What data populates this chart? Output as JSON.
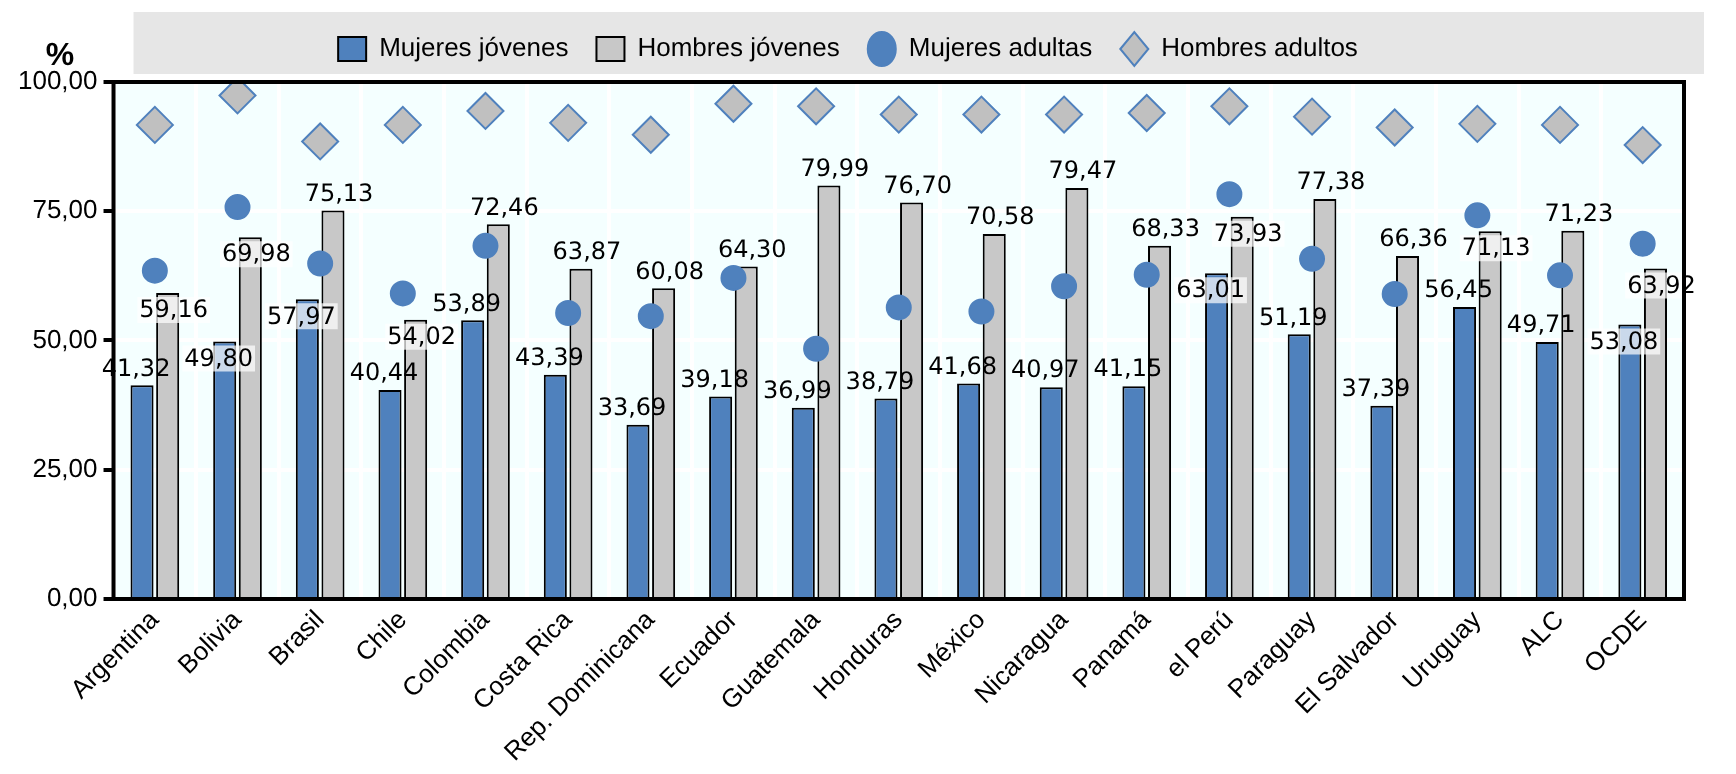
{
  "chart_data": {
    "type": "bar",
    "ylabel": "%",
    "categories": [
      "Argentina",
      "Bolivia",
      "Brasil",
      "Chile",
      "Colombia",
      "Costa Rica",
      "Rep. Dominicana",
      "Ecuador",
      "Guatemala",
      "Honduras",
      "México",
      "Nicaragua",
      "Panamá",
      "el Perú",
      "Paraguay",
      "El Salvador",
      "Uruguay",
      "ALC",
      "OCDE"
    ],
    "series": [
      {
        "name": "Mujeres jóvenes",
        "color": "#4f81bd",
        "values": [
          41.32,
          49.8,
          57.97,
          40.44,
          53.89,
          43.39,
          33.69,
          39.18,
          36.99,
          38.79,
          41.68,
          40.97,
          41.15,
          63.01,
          51.19,
          37.39,
          56.45,
          49.71,
          53.08
        ],
        "value_labels": [
          "41,32",
          "49,80",
          "57,97",
          "40,44",
          "53,89",
          "43,39",
          "33,69",
          "39,18",
          "36,99",
          "38,79",
          "41,68",
          "40,97",
          "41,15",
          "63,01",
          "51,19",
          "37,39",
          "56,45",
          "49,71",
          "53,08"
        ]
      },
      {
        "name": "Hombres jóvenes",
        "color": "#c8c8c8",
        "values": [
          59.16,
          69.98,
          75.13,
          54.02,
          72.46,
          63.87,
          60.08,
          64.3,
          79.99,
          76.7,
          70.58,
          79.47,
          68.33,
          73.93,
          77.38,
          66.36,
          71.13,
          71.23,
          63.92
        ],
        "value_labels": [
          "59,16",
          "69,98",
          "75,13",
          "54,02",
          "72,46",
          "63,87",
          "60,08",
          "64,30",
          "79,99",
          "76,70",
          "70,58",
          "79,47",
          "68,33",
          "73,93",
          "77,38",
          "66,36",
          "71,13",
          "71,23",
          "63,92"
        ]
      },
      {
        "name": "Mujeres adultas",
        "type": "scatter",
        "marker": "circle",
        "color": "#4f81bd",
        "x": [
          "Argentina",
          "Bolivia",
          "Brasil",
          "Chile",
          "Colombia",
          "Costa Rica",
          "Rep. Dominicana",
          "Ecuador",
          "Guatemala",
          "Honduras",
          "México",
          "Nicaragua",
          "Panamá",
          "el Perú",
          "Paraguay",
          "El Salvador",
          "Uruguay",
          "ALC",
          "OCDE"
        ],
        "values": [
          63.5,
          75.8,
          64.9,
          59.1,
          68.3,
          55.3,
          54.7,
          62.1,
          48.4,
          56.4,
          55.6,
          60.5,
          62.7,
          78.3,
          65.8,
          59.0,
          74.2,
          62.6,
          68.7
        ]
      },
      {
        "name": "Hombres adultos",
        "type": "scatter",
        "marker": "diamond",
        "color": "#c0c0c0",
        "x": [
          "Argentina",
          "Bolivia",
          "Brasil",
          "Chile",
          "Colombia",
          "Costa Rica",
          "Rep. Dominicana",
          "Ecuador",
          "Guatemala",
          "Honduras",
          "México",
          "Nicaragua",
          "Panamá",
          "el Perú",
          "Paraguay",
          "El Salvador",
          "Uruguay",
          "ALC",
          "OCDE"
        ],
        "values": [
          91.7,
          97.4,
          88.5,
          91.7,
          94.4,
          92.1,
          89.8,
          95.8,
          95.3,
          93.7,
          93.7,
          93.7,
          94.0,
          95.3,
          93.3,
          91.2,
          91.9,
          91.7,
          87.8
        ]
      }
    ],
    "ylim": [
      0,
      100
    ],
    "yticks": [
      {
        "value": 0,
        "label": "0,00"
      },
      {
        "value": 25,
        "label": "25,00"
      },
      {
        "value": 50,
        "label": "50,00"
      },
      {
        "value": 75,
        "label": "75,00"
      },
      {
        "value": 100,
        "label": "100,00"
      }
    ],
    "grid": true,
    "legend": "top"
  }
}
